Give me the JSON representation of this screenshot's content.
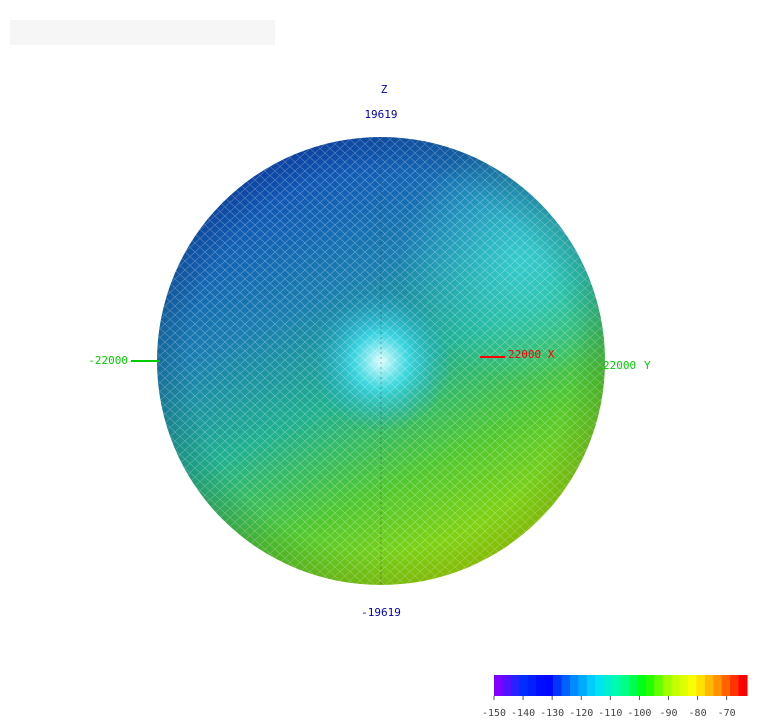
{
  "chart_data": {
    "type": "sphere",
    "axes": {
      "z": {
        "label": "Z",
        "max": 19619,
        "min": -19619,
        "color": "#0000aa"
      },
      "y": {
        "label": "Y",
        "max": 22000,
        "min": -22000,
        "color": "#00cc00"
      },
      "x": {
        "label": "22000 X",
        "color": "#ff0000"
      }
    },
    "colorbar": {
      "lim": [
        -150,
        -63
      ],
      "ticks": [
        -150,
        -140,
        -130,
        -120,
        -110,
        -100,
        -90,
        -80,
        -70
      ],
      "colors": [
        "#7f00ff",
        "#0030ff",
        "#0000ff",
        "#0080ff",
        "#00e0ff",
        "#00ffa0",
        "#00ff00",
        "#b0ff00",
        "#ffff00",
        "#ff9000",
        "#ff0000"
      ]
    }
  }
}
